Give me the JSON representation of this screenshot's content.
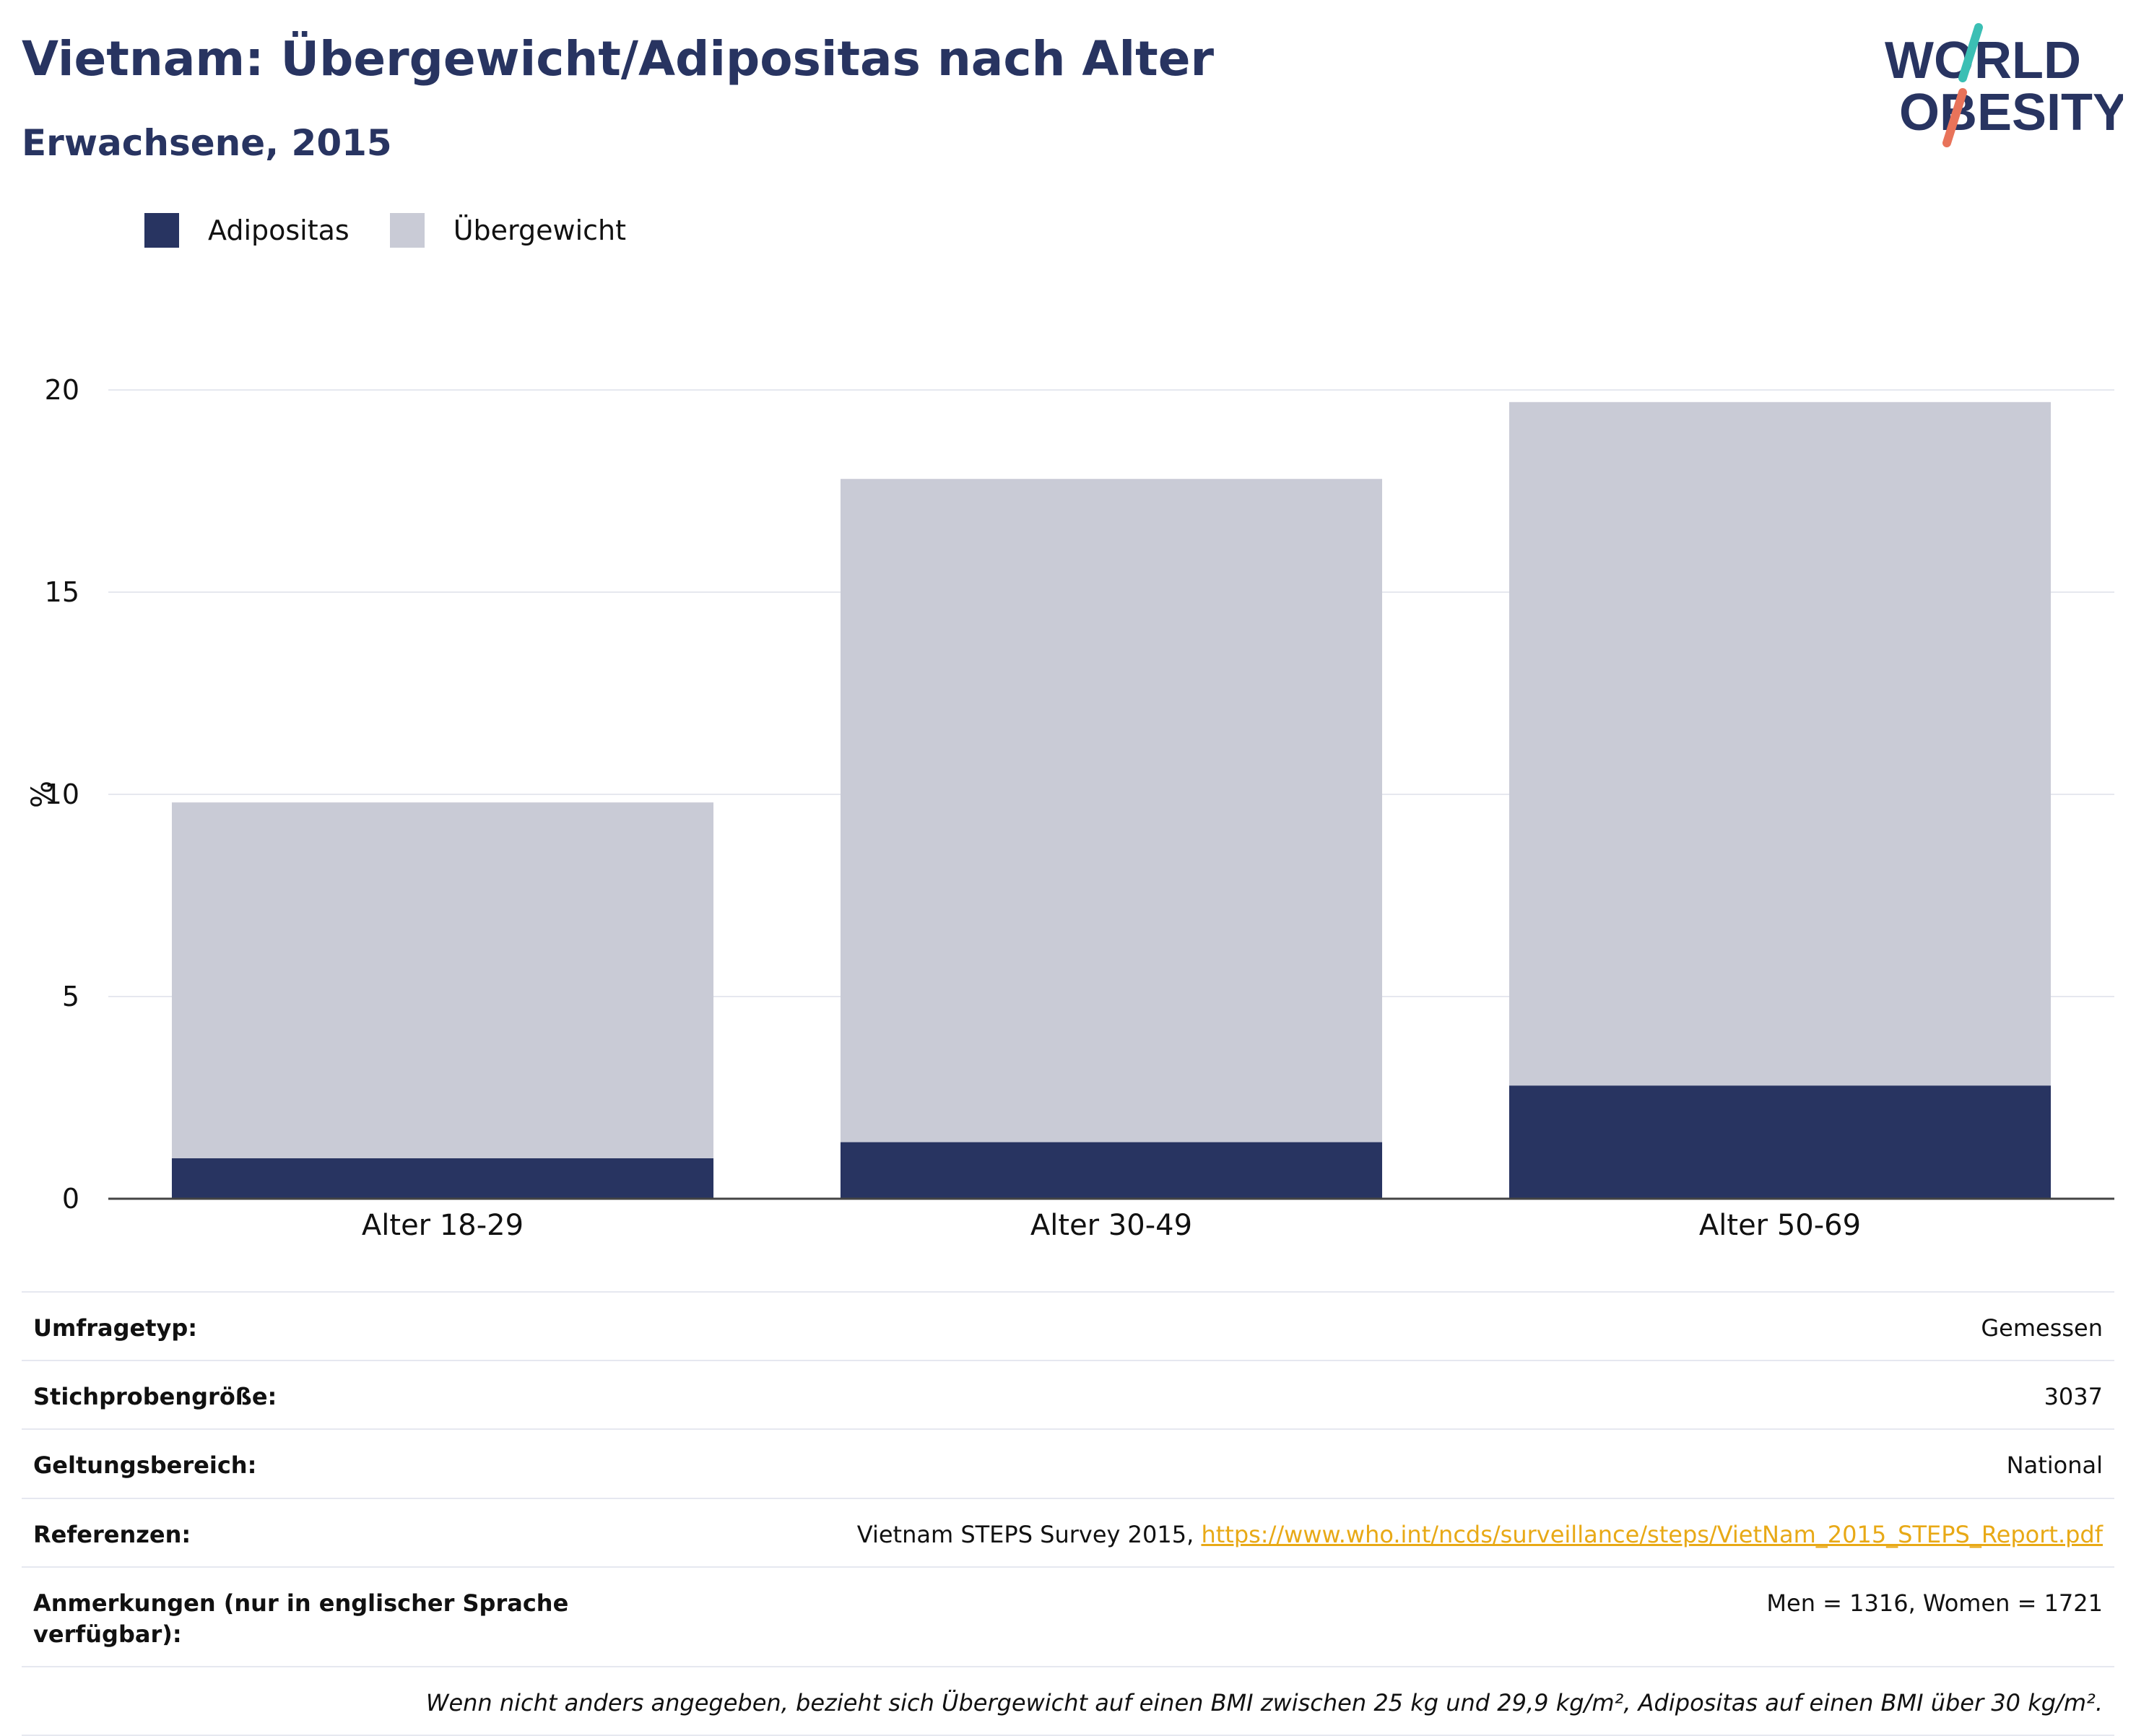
{
  "header": {
    "title": "Vietnam: Übergewicht/Adipositas nach Alter",
    "subtitle": "Erwachsene, 2015"
  },
  "logo": {
    "line1": "WORLD",
    "line2": "OBESITY",
    "colors": {
      "text": "#283461",
      "slash_top": "#3bbfb4",
      "slash_bottom": "#e8735a"
    }
  },
  "legend": {
    "items": [
      {
        "label": "Adipositas",
        "color": "#283461"
      },
      {
        "label": "Übergewicht",
        "color": "#c9cbd6"
      }
    ]
  },
  "chart_data": {
    "type": "bar",
    "stacked": true,
    "categories": [
      "Alter 18-29",
      "Alter 30-49",
      "Alter 50-69"
    ],
    "series": [
      {
        "name": "Adipositas",
        "values": [
          1.0,
          1.4,
          2.8
        ],
        "color": "#283461"
      },
      {
        "name": "Übergewicht",
        "values": [
          8.8,
          16.4,
          16.9
        ],
        "color": "#c9cbd6"
      }
    ],
    "ylabel": "%",
    "ylim": [
      0,
      20
    ],
    "yticks": [
      0,
      5,
      10,
      15,
      20
    ],
    "grid": true,
    "legend_position": "top-left"
  },
  "info": {
    "survey_type": {
      "label": "Umfragetyp:",
      "value": "Gemessen"
    },
    "sample_size": {
      "label": "Stichprobengröße:",
      "value": "3037"
    },
    "scope": {
      "label": "Geltungsbereich:",
      "value": "National"
    },
    "references": {
      "label": "Referenzen:",
      "text": "Vietnam STEPS Survey 2015, ",
      "link": "https://www.who.int/ncds/surveillance/steps/VietNam_2015_STEPS_Report.pdf"
    },
    "notes": {
      "label": "Anmerkungen (nur in englischer Sprache verfügbar):",
      "value": "Men = 1316, Women = 1721"
    },
    "footnote": "Wenn nicht anders angegeben, bezieht sich Übergewicht auf einen BMI zwischen 25 kg und 29,9 kg/m², Adipositas auf einen BMI über 30 kg/m²."
  }
}
